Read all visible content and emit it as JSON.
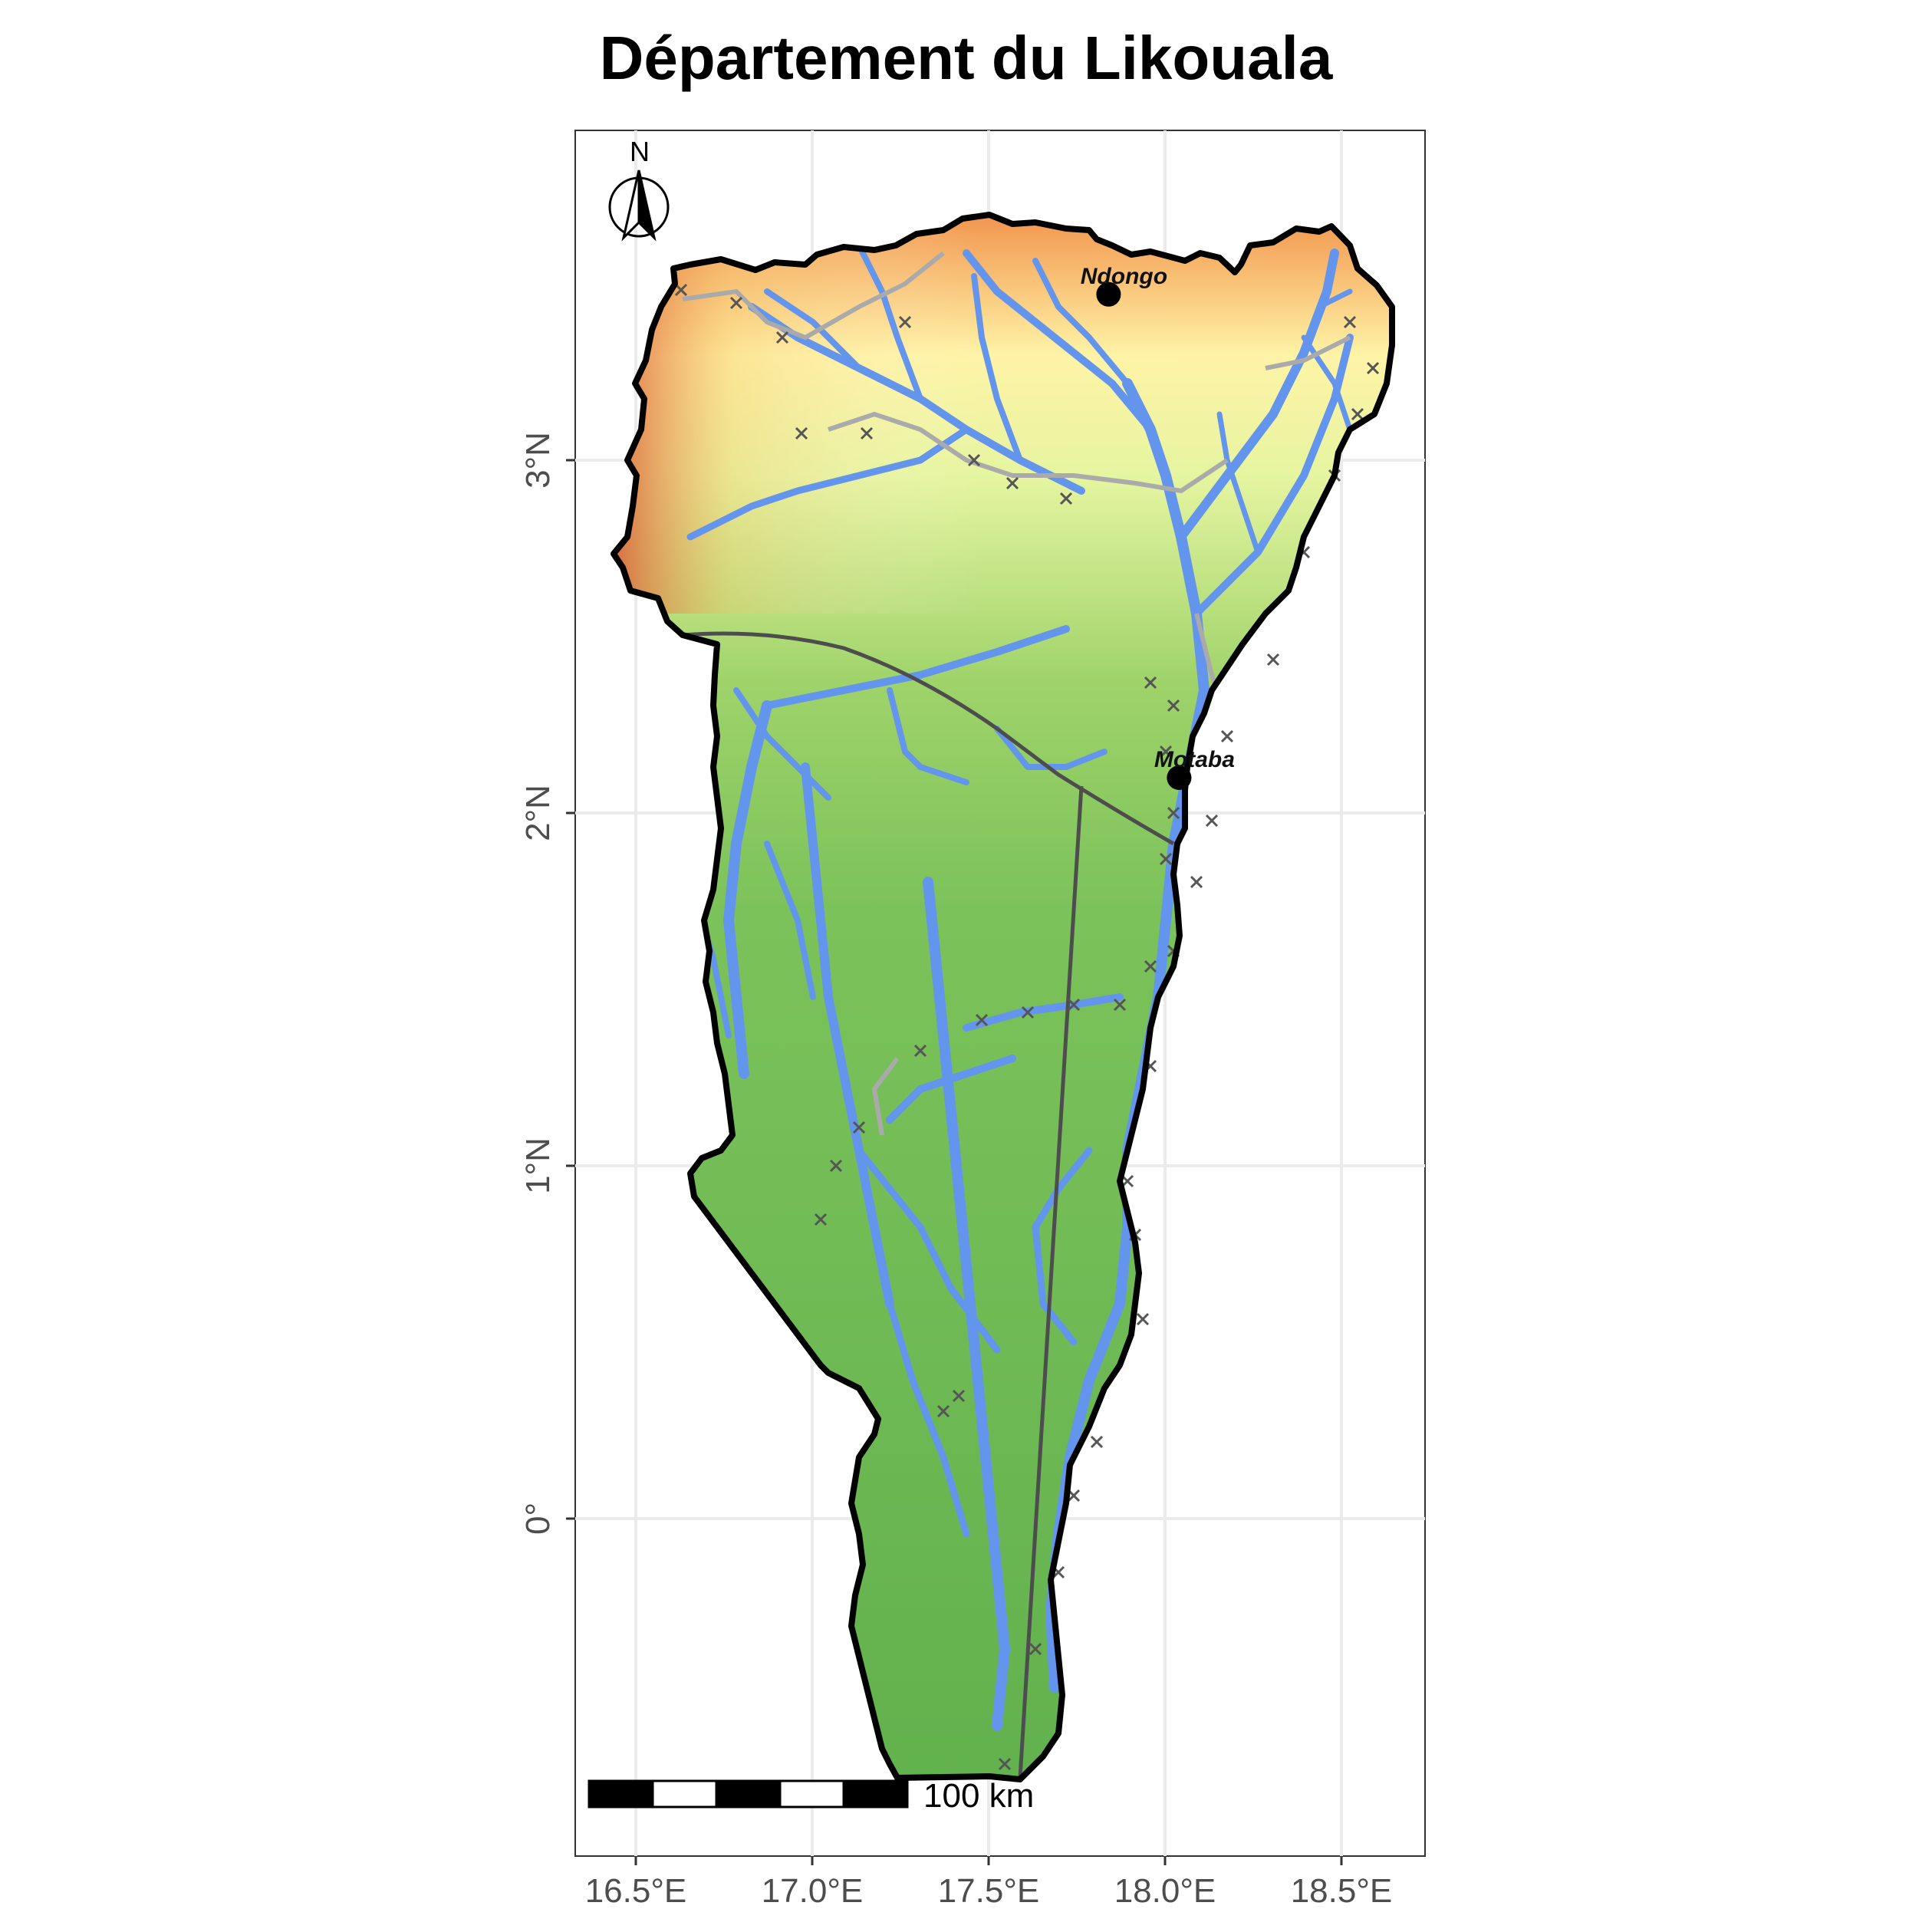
{
  "title": "Département du Likouala",
  "axes": {
    "x_ticks": [
      "16.5°E",
      "17.0°E",
      "17.5°E",
      "18.0°E",
      "18.5°E"
    ],
    "y_ticks": [
      "3°N",
      "2°N",
      "1°N",
      "0°"
    ]
  },
  "towns": [
    {
      "name": "Ndongo",
      "lon": 17.84,
      "lat": 3.47
    },
    {
      "name": "Motaba",
      "lon": 18.04,
      "lat": 2.1
    }
  ],
  "north_arrow": {
    "label": "N",
    "icon": "north-arrow-icon"
  },
  "scale_bar": {
    "label": "100 km"
  },
  "colors": {
    "rivers": "#6495ed",
    "roads": "#aaaaaa",
    "boundary": "#000000",
    "lines": "#4d4d4d",
    "elev_high": "#d7301f",
    "elev_mid": "#ffffbf",
    "elev_low": "#66bd63"
  }
}
